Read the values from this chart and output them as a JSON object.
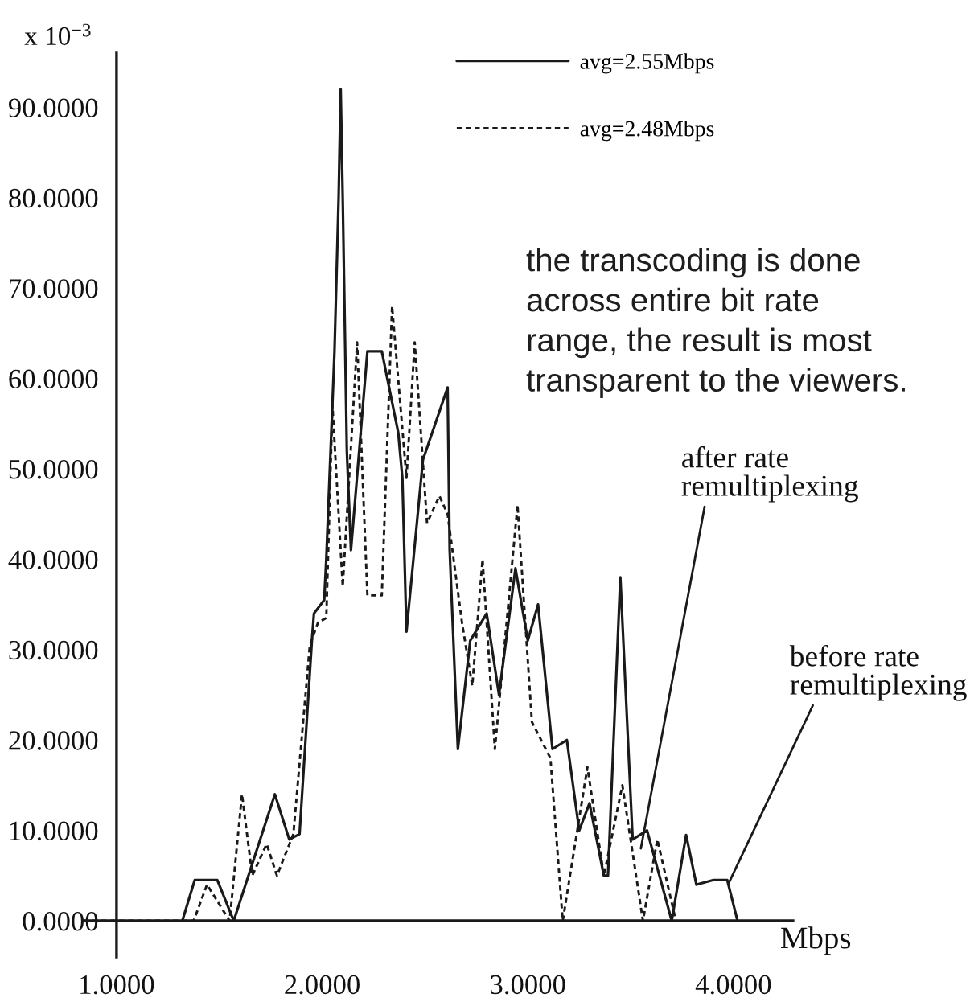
{
  "chart_data": {
    "type": "line",
    "xlabel": "Mbps",
    "ylabel": "x 10$^{−3}$",
    "xlim": [
      0.84,
      4.29
    ],
    "ylim": [
      -4,
      96
    ],
    "xticks": [
      {
        "value": 1,
        "label": "1.0000"
      },
      {
        "value": 2,
        "label": "2.0000"
      },
      {
        "value": 3,
        "label": "3.0000"
      },
      {
        "value": 4,
        "label": "4.0000"
      }
    ],
    "yticks": [
      {
        "value": 0,
        "label": "0.0000"
      },
      {
        "value": 10,
        "label": "10.0000"
      },
      {
        "value": 20,
        "label": "20.0000"
      },
      {
        "value": 30,
        "label": "30.0000"
      },
      {
        "value": 40,
        "label": "40.0000"
      },
      {
        "value": 50,
        "label": "50.0000"
      },
      {
        "value": 60,
        "label": "60.0000"
      },
      {
        "value": 70,
        "label": "70.0000"
      },
      {
        "value": 80,
        "label": "80.0000"
      },
      {
        "value": 90,
        "label": "90.0000"
      }
    ],
    "legend": "top",
    "series": [
      {
        "name": "avg=2.55Mbps",
        "color": "#1a1a1a",
        "line_style": "solid",
        "x": [
          1.32,
          1.38,
          1.49,
          1.57,
          1.77,
          1.84,
          1.89,
          1.95,
          1.96,
          2.01,
          2.02,
          2.06,
          2.08,
          2.09,
          2.1,
          2.12,
          2.14,
          2.22,
          2.29,
          2.37,
          2.39,
          2.41,
          2.49,
          2.61,
          2.62,
          2.66,
          2.72,
          2.8,
          2.86,
          2.94,
          3.0,
          3.05,
          3.12,
          3.19,
          3.25,
          3.3,
          3.37,
          3.39,
          3.45,
          3.51,
          3.58,
          3.7,
          3.77,
          3.82,
          3.9,
          3.97,
          4.02
        ],
        "values": [
          0,
          4.5,
          4.5,
          0,
          14,
          9,
          9.6,
          31,
          34,
          35.5,
          40,
          63,
          80,
          92,
          80,
          52,
          41,
          63,
          63,
          54,
          49,
          32,
          51,
          59,
          41,
          19,
          31,
          34,
          25,
          39,
          31,
          35,
          19,
          20,
          10,
          13,
          5,
          5,
          38,
          9,
          10,
          0,
          9.5,
          4,
          4.5,
          4.5,
          0
        ]
      },
      {
        "name": "avg=2.48Mbps",
        "color": "#1a1a1a",
        "line_style": "dotted",
        "x": [
          0.84,
          1.375,
          1.44,
          1.55,
          1.61,
          1.66,
          1.73,
          1.78,
          1.86,
          1.94,
          1.98,
          2.02,
          2.05,
          2.1,
          2.17,
          2.22,
          2.29,
          2.34,
          2.41,
          2.45,
          2.51,
          2.57,
          2.61,
          2.68,
          2.73,
          2.78,
          2.84,
          2.95,
          3.02,
          3.11,
          3.17,
          3.29,
          3.37,
          3.46,
          3.56,
          3.63,
          3.72
        ],
        "values": [
          0,
          0,
          4,
          0,
          14,
          5,
          8.5,
          5,
          9.6,
          30.5,
          33,
          33.5,
          57,
          37,
          64,
          36,
          36,
          68,
          49,
          64,
          44,
          47,
          45,
          33,
          26,
          40,
          19,
          46,
          22,
          18,
          0,
          17,
          5,
          15,
          0,
          9,
          0
        ]
      }
    ],
    "annotations": [
      "the transcoding is done\nacross entire bit rate\nrange, the result is most\ntransparent to the viewers.",
      {
        "text": "after rate\nremultiplexing",
        "x": 3.55,
        "y": 8
      },
      {
        "text": "before rate\nremultiplexing",
        "x": 3.98,
        "y": 4.3
      }
    ]
  }
}
